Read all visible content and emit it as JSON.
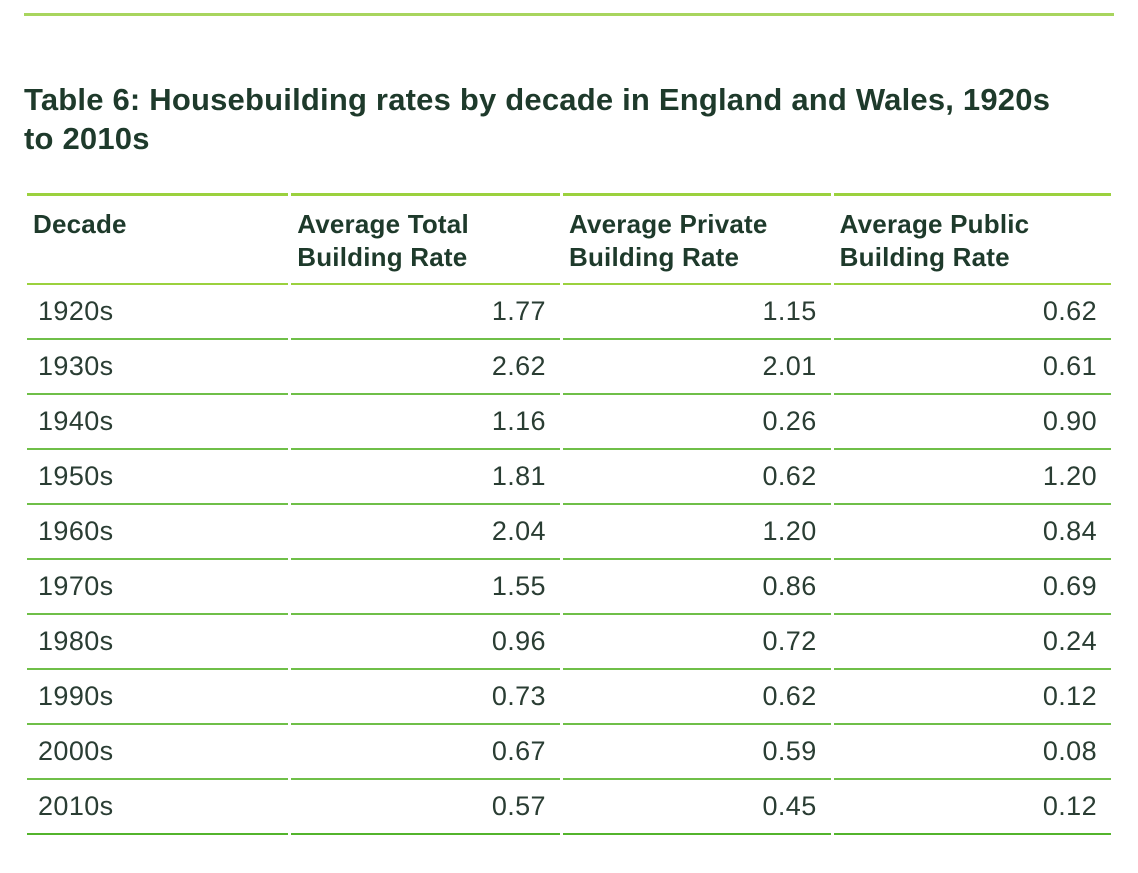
{
  "title": "Table 6: Housebuilding rates by decade in England and Wales, 1920s to 2010s",
  "table": {
    "headers": [
      {
        "line1": "Decade",
        "line2": ""
      },
      {
        "line1": "Average Total",
        "line2": "Building Rate"
      },
      {
        "line1": "Average Private",
        "line2": "Building Rate"
      },
      {
        "line1": "Average Public",
        "line2": "Building Rate"
      }
    ],
    "rows": [
      {
        "decade": "1920s",
        "total": "1.77",
        "private": "1.15",
        "public": "0.62"
      },
      {
        "decade": "1930s",
        "total": "2.62",
        "private": "2.01",
        "public": "0.61"
      },
      {
        "decade": "1940s",
        "total": "1.16",
        "private": "0.26",
        "public": "0.90"
      },
      {
        "decade": "1950s",
        "total": "1.81",
        "private": "0.62",
        "public": "1.20"
      },
      {
        "decade": "1960s",
        "total": "2.04",
        "private": "1.20",
        "public": "0.84"
      },
      {
        "decade": "1970s",
        "total": "1.55",
        "private": "0.86",
        "public": "0.69"
      },
      {
        "decade": "1980s",
        "total": "0.96",
        "private": "0.72",
        "public": "0.24"
      },
      {
        "decade": "1990s",
        "total": "0.73",
        "private": "0.62",
        "public": "0.12"
      },
      {
        "decade": "2000s",
        "total": "0.67",
        "private": "0.59",
        "public": "0.08"
      },
      {
        "decade": "2010s",
        "total": "0.57",
        "private": "0.45",
        "public": "0.12"
      }
    ]
  },
  "colors": {
    "accent_light": "#a8d55e",
    "accent_header": "#9bd13e",
    "accent_row": "#6fbf48",
    "accent_bottom": "#53b42c",
    "title_text": "#1e3a2b",
    "body_text": "#2a3d33"
  }
}
